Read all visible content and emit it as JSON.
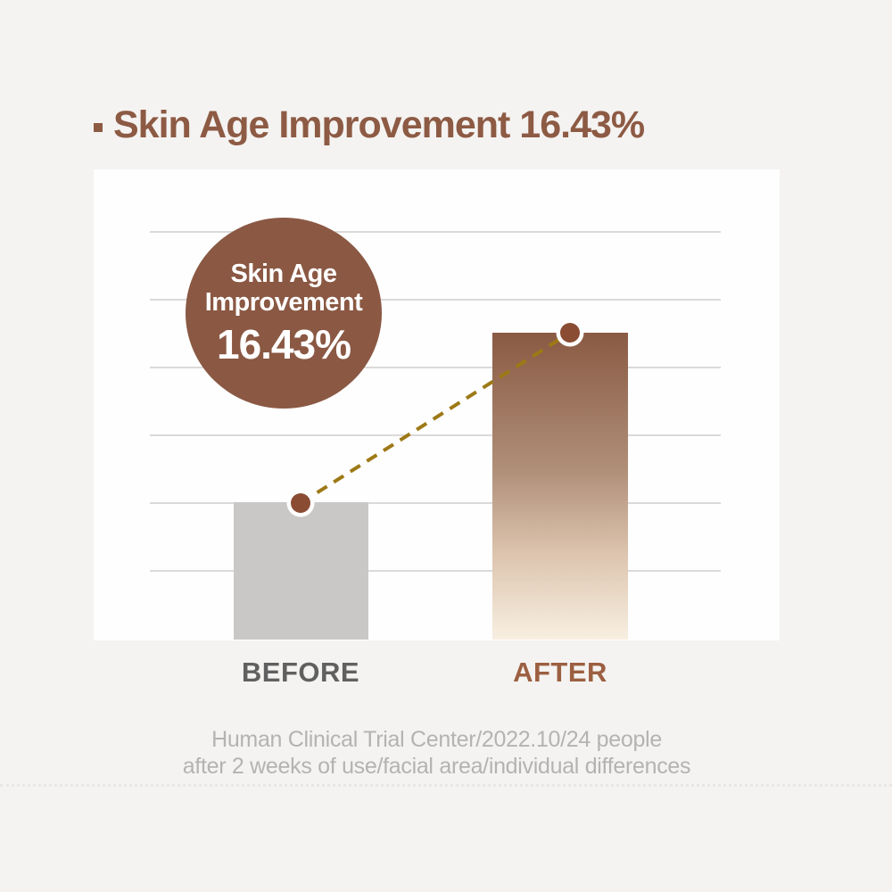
{
  "title": {
    "text": "Skin Age Improvement 16.43%"
  },
  "badge": {
    "line1": "Skin Age",
    "line2": "Improvement",
    "value": "16.43%"
  },
  "chart_data": {
    "type": "bar",
    "title": "Skin Age Improvement 16.43%",
    "categories": [
      "BEFORE",
      "AFTER"
    ],
    "values": [
      2.03,
      4.53
    ],
    "values_unit": "gridline units (chart shows no numeric axis; heights estimated from gridlines)",
    "ylim": [
      0,
      6.9
    ],
    "gridlines_at": [
      1,
      2,
      3,
      4,
      5,
      6
    ],
    "grid": "horizontal light gray lines",
    "legend": "none",
    "improvement_pct": 16.43,
    "annotation_badge": [
      "Skin Age",
      "Improvement",
      "16.43%"
    ],
    "connector": {
      "style": "dashed line with circular markers",
      "from": "top of BEFORE bar",
      "to": "top of AFTER bar"
    },
    "bar_styles": {
      "BEFORE": "#c9c8c7 solid gray",
      "AFTER": "vertical gradient #8a5a43 to #f8efe1"
    }
  },
  "xlabels": {
    "before": "BEFORE",
    "after": "AFTER"
  },
  "footer": {
    "line1": "Human Clinical Trial Center/2022.10/24 people",
    "line2": "after 2 weeks of use/facial area/individual differences"
  },
  "colors": {
    "bg": "#f4f3f1",
    "panel": "#fefefe",
    "grid": "#dbdad9",
    "brown": "#8d5a44",
    "badge": "#8a5843",
    "after-label": "#9c5f41",
    "before-bar": "#c9c8c7",
    "after-top": "#8a5a43",
    "after-bottom": "#f8efe1",
    "marker": "#8a4c33",
    "dash": "#9d7916",
    "before-label": "#606060",
    "footer": "#b5b3b1",
    "divider": "#e9e6e3"
  }
}
